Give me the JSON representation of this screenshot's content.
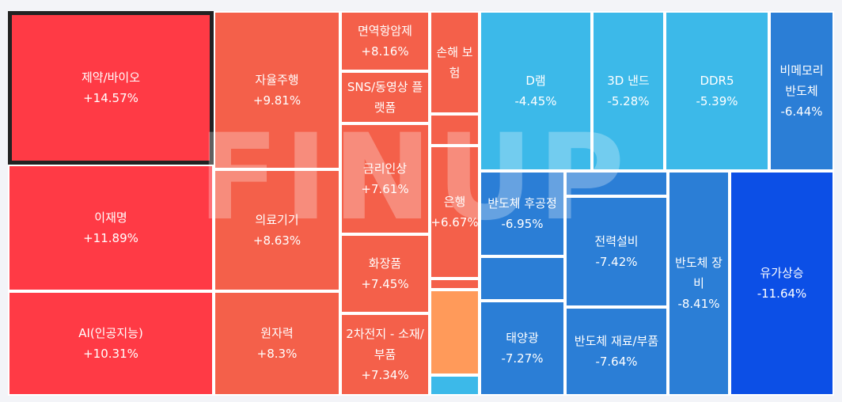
{
  "watermark": "FINUP",
  "colors": {
    "page_background": "#f3f4f8",
    "strong_up": "#ff3a45",
    "up": "#f4604a",
    "mild_up": "#f36a4c",
    "light_up": "#ff9a5a",
    "down_light": "#3cb9e9",
    "down": "#2b7ed6",
    "strong_down": "#0c4fe6",
    "selected_border": "#222222"
  },
  "chart_data": {
    "type": "treemap",
    "title": "",
    "selected": "제약/바이오",
    "tiles": [
      {
        "name": "제약/바이오",
        "value": "+14.57%",
        "change": 14.57,
        "color": "#ff3a45"
      },
      {
        "name": "이재명",
        "value": "+11.89%",
        "change": 11.89,
        "color": "#ff3a45"
      },
      {
        "name": "AI(인공지능)",
        "value": "+10.31%",
        "change": 10.31,
        "color": "#ff3a45"
      },
      {
        "name": "자율주행",
        "value": "+9.81%",
        "change": 9.81,
        "color": "#f4604a"
      },
      {
        "name": "의료기기",
        "value": "+8.63%",
        "change": 8.63,
        "color": "#f4604a"
      },
      {
        "name": "원자력",
        "value": "+8.3%",
        "change": 8.3,
        "color": "#f4604a"
      },
      {
        "name": "면역항암제",
        "value": "+8.16%",
        "change": 8.16,
        "color": "#f4604a"
      },
      {
        "name": "SNS/동영상 플랫폼",
        "value": "",
        "change": null,
        "color": "#f4604a"
      },
      {
        "name": "금리인상",
        "value": "+7.61%",
        "change": 7.61,
        "color": "#f4604a"
      },
      {
        "name": "화장품",
        "value": "+7.45%",
        "change": 7.45,
        "color": "#f4604a"
      },
      {
        "name": "2차전지 - 소재/부품",
        "value": "+7.34%",
        "change": 7.34,
        "color": "#f4604a"
      },
      {
        "name": "손해 보험",
        "value": "",
        "change": null,
        "color": "#f4604a"
      },
      {
        "name": "",
        "value": "",
        "change": null,
        "color": "#f4604a"
      },
      {
        "name": "은행",
        "value": "+6.67%",
        "change": 6.67,
        "color": "#f4604a"
      },
      {
        "name": "",
        "value": "",
        "change": null,
        "color": "#f4604a"
      },
      {
        "name": "",
        "value": "",
        "change": null,
        "color": "#f4604a"
      },
      {
        "name": "",
        "value": "",
        "change": null,
        "color": "#ff9a5a"
      },
      {
        "name": "",
        "value": "",
        "change": null,
        "color": "#3cb9e9"
      },
      {
        "name": "D램",
        "value": "-4.45%",
        "change": -4.45,
        "color": "#3cb9e9"
      },
      {
        "name": "3D 낸드",
        "value": "-5.28%",
        "change": -5.28,
        "color": "#3cb9e9"
      },
      {
        "name": "DDR5",
        "value": "-5.39%",
        "change": -5.39,
        "color": "#3cb9e9"
      },
      {
        "name": "비메모리 반도체",
        "value": "-6.44%",
        "change": -6.44,
        "color": "#2b7ed6"
      },
      {
        "name": "반도체 후공정",
        "value": "-6.95%",
        "change": -6.95,
        "color": "#2b7ed6"
      },
      {
        "name": "",
        "value": "",
        "change": null,
        "color": "#2b7ed6"
      },
      {
        "name": "",
        "value": "",
        "change": null,
        "color": "#2b7ed6"
      },
      {
        "name": "전력설비",
        "value": "-7.42%",
        "change": -7.42,
        "color": "#2b7ed6"
      },
      {
        "name": "태양광",
        "value": "-7.27%",
        "change": -7.27,
        "color": "#2b7ed6"
      },
      {
        "name": "반도체 재료/부품",
        "value": "-7.64%",
        "change": -7.64,
        "color": "#2b7ed6"
      },
      {
        "name": "반도체 장비",
        "value": "-8.41%",
        "change": -8.41,
        "color": "#2b7ed6"
      },
      {
        "name": "유가상승",
        "value": "-11.64%",
        "change": -11.64,
        "color": "#0c4fe6"
      }
    ]
  }
}
